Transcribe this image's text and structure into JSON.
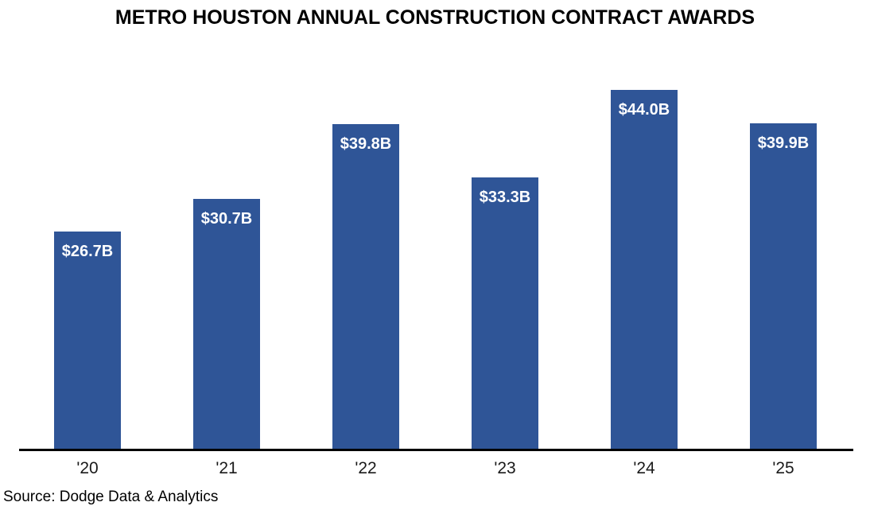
{
  "title": "METRO HOUSTON ANNUAL CONSTRUCTION CONTRACT AWARDS",
  "source": "Source: Dodge Data & Analytics",
  "colors": {
    "bar": "#2F5597",
    "axis": "#000000",
    "bar_label_text": "#ffffff",
    "title_text": "#000000"
  },
  "chart_data": {
    "type": "bar",
    "title": "METRO HOUSTON ANNUAL CONSTRUCTION CONTRACT AWARDS",
    "categories": [
      "'20",
      "'21",
      "'22",
      "'23",
      "'24",
      "'25"
    ],
    "values": [
      26.7,
      30.7,
      39.8,
      33.3,
      44.0,
      39.9
    ],
    "value_labels": [
      "$26.7B",
      "$30.7B",
      "$39.8B",
      "$33.3B",
      "$44.0B",
      "$39.9B"
    ],
    "value_label_position": "inside-top",
    "xlabel": "",
    "ylabel": "",
    "unit": "billion USD",
    "ylim": [
      0,
      46.2
    ],
    "grid": false,
    "y_axis_visible": false,
    "legend": false,
    "source": "Source: Dodge Data & Analytics"
  }
}
